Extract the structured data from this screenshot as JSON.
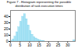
{
  "chart_data": {
    "type": "histogram",
    "title": "Figure 7 - Histogram representing the possible distribution of task execution times",
    "bins": [
      0,
      1,
      2,
      3,
      4,
      5,
      6,
      7,
      8,
      9,
      10,
      11,
      12,
      13,
      14,
      15,
      16,
      17,
      18,
      19,
      20,
      21,
      22,
      23,
      24,
      25,
      26,
      27,
      28,
      29,
      30,
      31,
      32,
      33,
      34
    ],
    "values": [
      1,
      3,
      8,
      15,
      23,
      32,
      40,
      44,
      36,
      26,
      17,
      11,
      7,
      5,
      3,
      2,
      1,
      1,
      0,
      0,
      0,
      0,
      0,
      0,
      0,
      0,
      0,
      0,
      0,
      0,
      0,
      0,
      0,
      2
    ],
    "color": "#aae4f5",
    "xlim": [
      0,
      34
    ],
    "xticks": [
      0,
      5,
      10,
      15,
      20,
      25,
      30
    ],
    "ylim": [
      0,
      50
    ],
    "yticks": [
      0,
      10,
      20,
      30,
      40
    ]
  }
}
